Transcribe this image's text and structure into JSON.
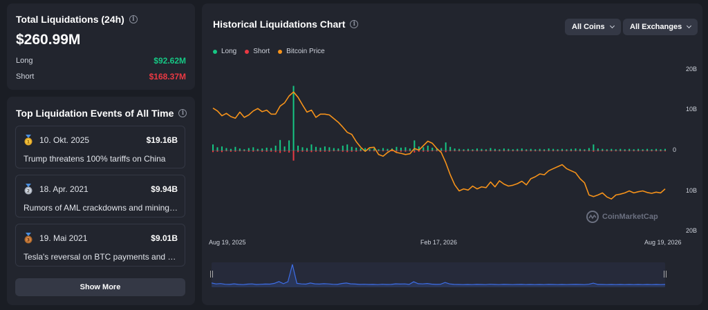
{
  "summary": {
    "title": "Total Liquidations (24h)",
    "total": "$260.99M",
    "long_label": "Long",
    "long_value": "$92.62M",
    "short_label": "Short",
    "short_value": "$168.37M"
  },
  "top_events": {
    "title": "Top Liquidation Events of All Time",
    "items": [
      {
        "rank_icon": "gold-medal-icon",
        "date": "10. Okt. 2025",
        "amount": "$19.16B",
        "desc": "Trump threatens 100% tariffs on China"
      },
      {
        "rank_icon": "silver-medal-icon",
        "date": "18. Apr. 2021",
        "amount": "$9.94B",
        "desc": "Rumors of AML crackdowns and mining ..."
      },
      {
        "rank_icon": "bronze-medal-icon",
        "date": "19. Mai 2021",
        "amount": "$9.01B",
        "desc": "Tesla's reversal on BTC payments and C..."
      }
    ],
    "show_more_label": "Show More"
  },
  "chart_panel": {
    "title": "Historical Liquidations Chart",
    "coins_dropdown": "All Coins",
    "exchanges_dropdown": "All Exchanges",
    "legend": [
      {
        "name": "Long",
        "color": "#16c784"
      },
      {
        "name": "Short",
        "color": "#ea3943"
      },
      {
        "name": "Bitcoin Price",
        "color": "#f7931a"
      }
    ],
    "watermark": "CoinMarketCap"
  },
  "chart_data": {
    "type": "line",
    "x_labels": [
      "Aug 19, 2025",
      "Feb 17, 2026",
      "Aug 19, 2026"
    ],
    "y_labels": [
      "20B",
      "10B",
      "0",
      "10B",
      "20B"
    ],
    "y_range": [
      -20,
      20
    ],
    "bitcoin_price_series": [
      10.5,
      9.8,
      8.6,
      9.2,
      8.4,
      8.0,
      9.5,
      8.2,
      8.8,
      9.8,
      10.4,
      9.6,
      10.0,
      9.0,
      9.0,
      11.0,
      11.8,
      13.5,
      14.5,
      13.2,
      11.3,
      9.5,
      10.0,
      8.2,
      9.0,
      9.0,
      8.8,
      7.9,
      7.0,
      5.8,
      4.5,
      4.0,
      2.2,
      0.8,
      -0.2,
      0.7,
      0.8,
      -1.0,
      -1.4,
      -0.5,
      0.2,
      -0.5,
      -0.7,
      -1.0,
      -0.8,
      0.5,
      0.1,
      1.2,
      2.3,
      1.8,
      0.5,
      -0.5,
      -3.0,
      -6.0,
      -8.5,
      -10.0,
      -9.5,
      -9.8,
      -8.8,
      -9.5,
      -9.0,
      -9.2,
      -7.8,
      -9.0,
      -7.5,
      -8.3,
      -8.8,
      -8.6,
      -8.2,
      -7.6,
      -8.5,
      -7.0,
      -6.5,
      -5.8,
      -6.0,
      -5.0,
      -4.5,
      -4.0,
      -3.5,
      -4.5,
      -5.0,
      -5.5,
      -7.0,
      -8.0,
      -11.0,
      -11.4,
      -11.0,
      -10.5,
      -11.5,
      -12.0,
      -11.0,
      -10.8,
      -10.5,
      -10.0,
      -10.5,
      -10.2,
      -10.0,
      -10.4,
      -10.6,
      -10.3,
      -10.5,
      -9.5
    ],
    "long_series": [
      1.5,
      0.8,
      1.0,
      0.6,
      0.4,
      0.9,
      0.5,
      0.3,
      0.6,
      0.8,
      0.4,
      0.5,
      0.7,
      0.6,
      1.2,
      2.6,
      1.0,
      2.5,
      16.0,
      1.2,
      0.8,
      0.6,
      1.5,
      0.9,
      0.7,
      1.0,
      0.8,
      0.6,
      0.5,
      1.2,
      1.5,
      0.9,
      0.7,
      0.5,
      0.6,
      0.4,
      0.5,
      0.3,
      0.6,
      0.4,
      0.5,
      0.9,
      0.7,
      0.8,
      0.5,
      2.5,
      1.0,
      0.8,
      1.2,
      0.7,
      0.5,
      0.6,
      2.0,
      0.9,
      0.5,
      0.4,
      0.3,
      0.4,
      0.3,
      0.5,
      0.4,
      0.3,
      0.6,
      0.4,
      0.3,
      0.5,
      0.4,
      0.3,
      0.4,
      0.5,
      0.3,
      0.4,
      0.3,
      0.4,
      0.3,
      0.5,
      0.4,
      0.3,
      0.4,
      0.3,
      0.4,
      0.5,
      0.4,
      0.3,
      0.6,
      1.5,
      0.5,
      0.4,
      0.3,
      0.4,
      0.3,
      0.4,
      0.3,
      0.4,
      0.3,
      0.4,
      0.3,
      0.4,
      0.3,
      0.4,
      0.3,
      0.4
    ],
    "short_series": [
      0.4,
      0.3,
      0.4,
      0.2,
      0.3,
      0.3,
      0.2,
      0.2,
      0.3,
      0.3,
      0.2,
      0.3,
      0.3,
      0.3,
      0.4,
      0.6,
      0.3,
      0.5,
      2.5,
      0.4,
      0.3,
      0.3,
      0.4,
      0.3,
      0.3,
      0.3,
      0.3,
      0.2,
      0.2,
      0.3,
      0.4,
      0.3,
      0.3,
      0.2,
      0.2,
      0.2,
      0.2,
      0.2,
      0.2,
      0.2,
      0.2,
      0.3,
      0.3,
      0.3,
      0.2,
      0.5,
      0.3,
      0.3,
      0.3,
      0.2,
      0.2,
      0.2,
      0.4,
      0.2,
      0.2,
      0.2,
      0.2,
      0.2,
      0.2,
      0.2,
      0.2,
      0.2,
      0.2,
      0.2,
      0.2,
      0.2,
      0.2,
      0.2,
      0.2,
      0.2,
      0.2,
      0.2,
      0.2,
      0.2,
      0.2,
      0.2,
      0.2,
      0.2,
      0.2,
      0.2,
      0.2,
      0.2,
      0.2,
      0.2,
      0.2,
      0.3,
      0.2,
      0.2,
      0.2,
      0.2,
      0.2,
      0.2,
      0.2,
      0.2,
      0.2,
      0.2,
      0.2,
      0.2,
      0.2,
      0.2,
      0.2,
      0.2
    ]
  }
}
